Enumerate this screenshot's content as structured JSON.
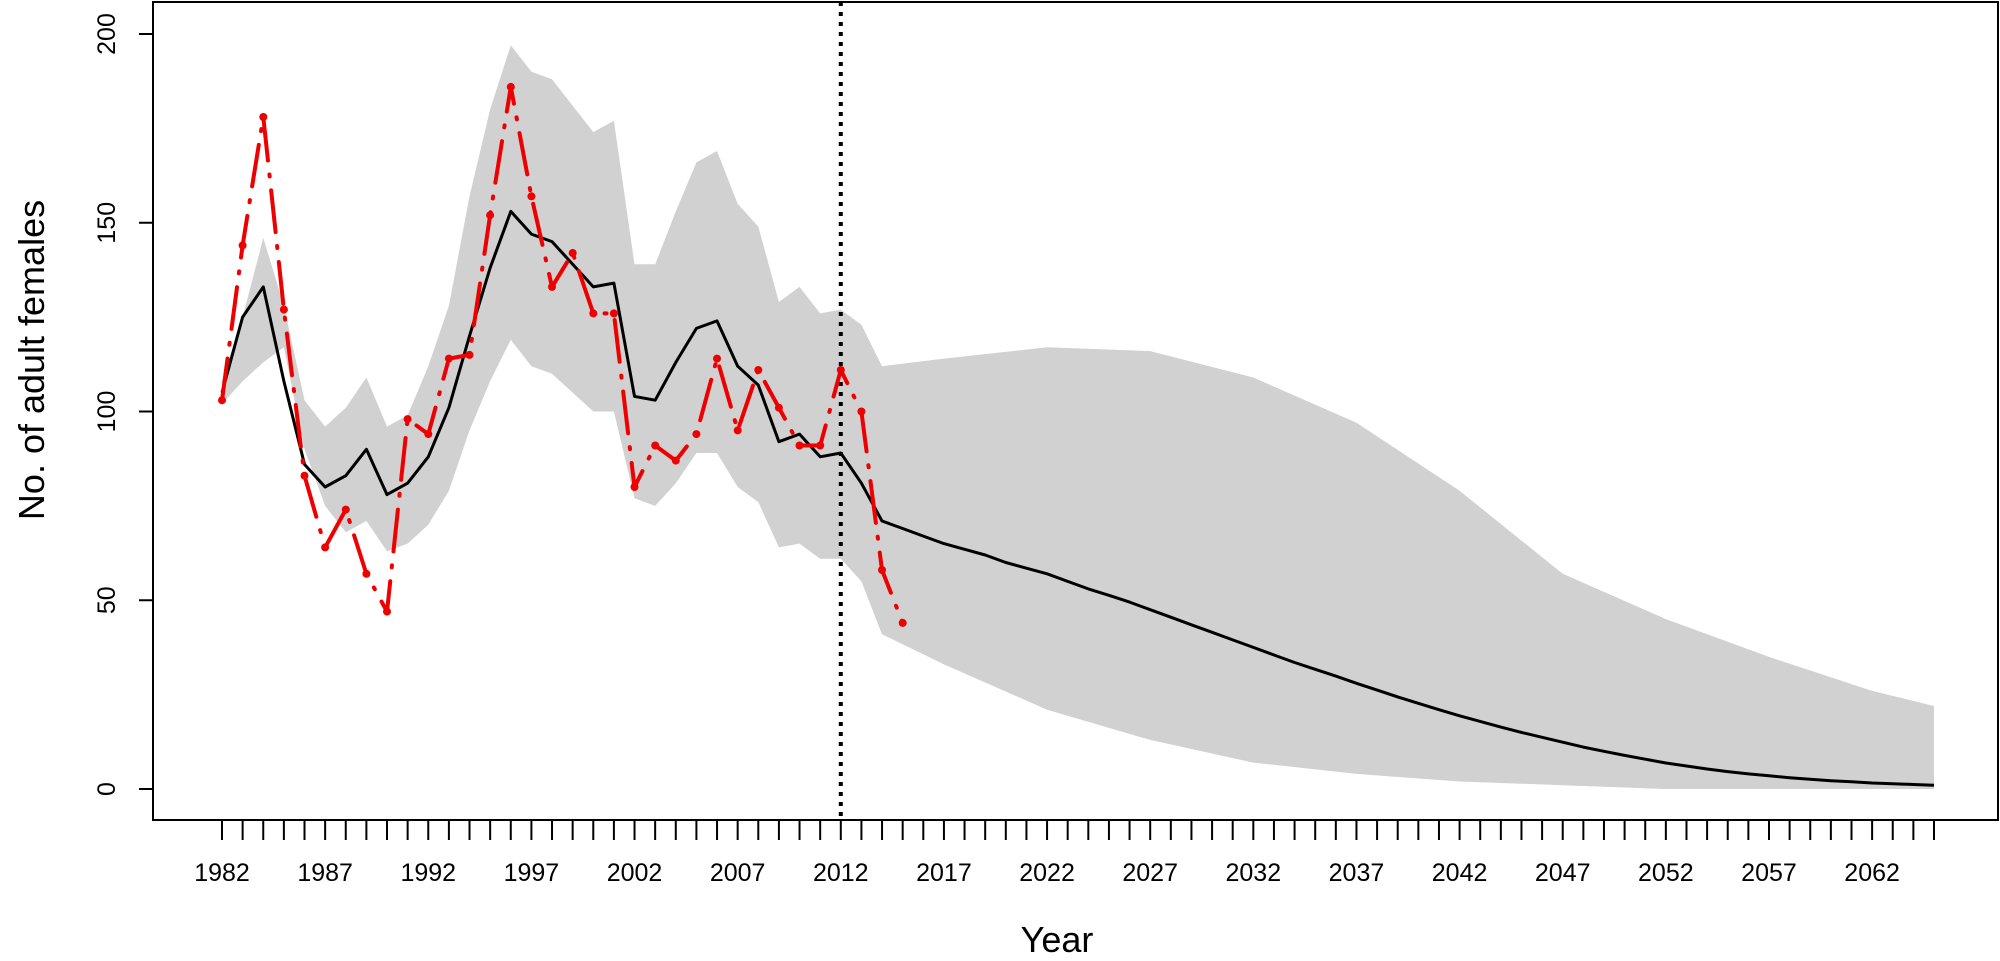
{
  "chart_data": {
    "type": "line",
    "title": "",
    "xlabel": "Year",
    "ylabel": "No. of adult females",
    "xlim": [
      1982,
      2065
    ],
    "ylim": [
      0,
      200
    ],
    "y_ticks": [
      0,
      50,
      100,
      150,
      200
    ],
    "x_tick_labels": [
      "1982",
      "1987",
      "1992",
      "1997",
      "2002",
      "2007",
      "2012",
      "2017",
      "2022",
      "2027",
      "2032",
      "2037",
      "2042",
      "2047",
      "2052",
      "2057",
      "2062"
    ],
    "minor_tick_step": 1,
    "vline": {
      "x": 2012,
      "style": "dotted",
      "color": "#000000"
    },
    "band": {
      "x": [
        1982,
        1983,
        1984,
        1985,
        1986,
        1987,
        1988,
        1989,
        1990,
        1991,
        1992,
        1993,
        1994,
        1995,
        1996,
        1997,
        1998,
        1999,
        2000,
        2001,
        2002,
        2003,
        2004,
        2005,
        2006,
        2007,
        2008,
        2009,
        2010,
        2011,
        2012,
        2013,
        2014,
        2017,
        2022,
        2027,
        2032,
        2037,
        2042,
        2047,
        2052,
        2057,
        2062,
        2065
      ],
      "upper": [
        108,
        125,
        146,
        128,
        103,
        96,
        101,
        109,
        96,
        99,
        112,
        128,
        157,
        180,
        197,
        190,
        188,
        181,
        174,
        177,
        139,
        139,
        153,
        166,
        169,
        155,
        149,
        129,
        133,
        126,
        127,
        123,
        112,
        114,
        117,
        116,
        109,
        97,
        79,
        57,
        45,
        35,
        26,
        22
      ],
      "lower": [
        102,
        108,
        113,
        117,
        90,
        75,
        68,
        71,
        63,
        65,
        70,
        79,
        95,
        108,
        119,
        112,
        110,
        105,
        100,
        100,
        77,
        75,
        81,
        89,
        89,
        80,
        76,
        64,
        65,
        61,
        61,
        55,
        41,
        33,
        21,
        13,
        7,
        4,
        2,
        1,
        0,
        0,
        0,
        0
      ],
      "color": "#d1d1d1"
    },
    "series": [
      {
        "style": "solid",
        "color": "#000000",
        "x": [
          1982,
          1983,
          1984,
          1985,
          1986,
          1987,
          1988,
          1989,
          1990,
          1991,
          1992,
          1993,
          1994,
          1995,
          1996,
          1997,
          1998,
          1999,
          2000,
          2001,
          2002,
          2003,
          2004,
          2005,
          2006,
          2007,
          2008,
          2009,
          2010,
          2011,
          2012,
          2013,
          2014,
          2015,
          2016,
          2017,
          2018,
          2019,
          2020,
          2021,
          2022,
          2023,
          2024,
          2025,
          2026,
          2027,
          2028,
          2029,
          2030,
          2031,
          2032,
          2033,
          2034,
          2035,
          2036,
          2037,
          2038,
          2039,
          2040,
          2041,
          2042,
          2043,
          2044,
          2045,
          2046,
          2047,
          2048,
          2049,
          2050,
          2051,
          2052,
          2053,
          2054,
          2055,
          2056,
          2057,
          2058,
          2059,
          2060,
          2061,
          2062,
          2063,
          2064,
          2065
        ],
        "values": [
          105,
          125,
          133,
          108,
          86,
          80,
          83,
          90,
          78,
          81,
          88,
          101,
          120,
          138,
          153,
          147,
          145,
          139,
          133,
          134,
          104,
          103,
          113,
          122,
          124,
          112,
          107,
          92,
          94,
          88,
          89,
          81,
          71,
          69,
          67,
          65,
          63.5,
          62,
          60,
          58.5,
          57,
          55,
          53,
          51.3,
          49.5,
          47.5,
          45.5,
          43.5,
          41.5,
          39.5,
          37.5,
          35.5,
          33.5,
          31.7,
          29.9,
          28,
          26.2,
          24.4,
          22.7,
          21,
          19.4,
          17.9,
          16.4,
          15,
          13.7,
          12.4,
          11.1,
          10,
          8.9,
          7.9,
          6.9,
          6.1,
          5.3,
          4.6,
          4,
          3.5,
          3,
          2.6,
          2.2,
          1.9,
          1.6,
          1.4,
          1.2,
          1
        ]
      },
      {
        "style": "dash-dot",
        "color": "#ee0000",
        "x": [
          1982,
          1983,
          1984,
          1985,
          1986,
          1987,
          1988,
          1989,
          1990,
          1991,
          1992,
          1993,
          1994,
          1995,
          1996,
          1997,
          1998,
          1999,
          2000,
          2001,
          2002,
          2003,
          2004,
          2005,
          2006,
          2007,
          2008,
          2009,
          2010,
          2011,
          2012,
          2013,
          2014,
          2015
        ],
        "values": [
          103,
          144,
          178,
          127,
          83,
          64,
          74,
          57,
          47,
          98,
          94,
          114,
          115,
          152,
          186,
          157,
          133,
          142,
          126,
          126,
          80,
          91,
          87,
          94,
          114,
          95,
          111,
          101,
          91,
          91,
          111,
          100,
          58,
          44
        ]
      }
    ]
  }
}
